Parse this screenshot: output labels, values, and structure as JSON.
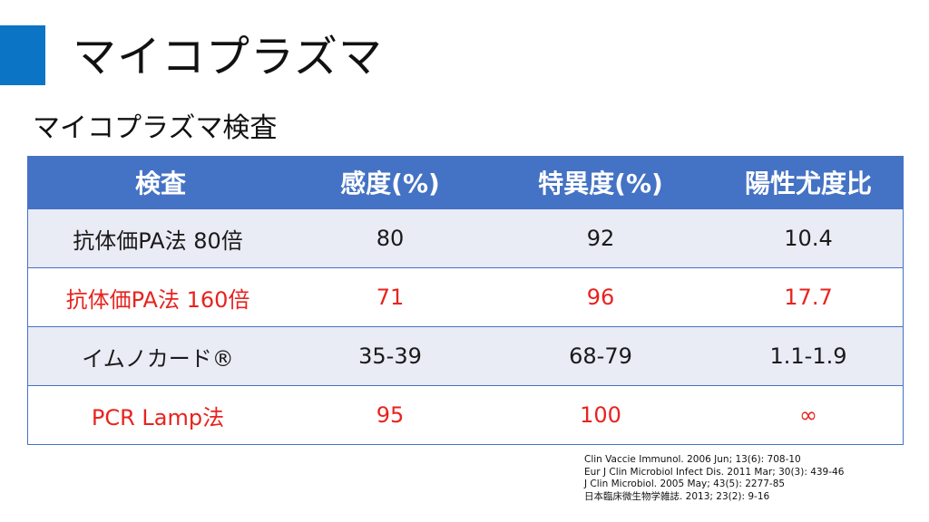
{
  "slide": {
    "title": "マイコプラズマ",
    "subtitle": "マイコプラズマ検査",
    "accent_color": "#0b74c5"
  },
  "table": {
    "header_color": "#4472c4",
    "headers": [
      "検査",
      "感度(%)",
      "特異度(%)",
      "陽性尤度比"
    ],
    "rows": [
      {
        "cells": [
          "抗体価PA法 80倍",
          "80",
          "92",
          "10.4"
        ],
        "text_color": "#1a1a1a"
      },
      {
        "cells": [
          "抗体価PA法 160倍",
          "71",
          "96",
          "17.7"
        ],
        "text_color": "#e8231e"
      },
      {
        "cells": [
          "イムノカード®",
          "35-39",
          "68-79",
          "1.1-1.9"
        ],
        "text_color": "#1a1a1a"
      },
      {
        "cells": [
          "PCR Lamp法",
          "95",
          "100",
          "∞"
        ],
        "text_color": "#e8231e"
      }
    ]
  },
  "references": [
    "Clin Vaccie Immunol. 2006 Jun; 13(6): 708-10",
    "Eur J Clin Microbiol Infect Dis. 2011 Mar; 30(3): 439-46",
    "J Clin Microbiol. 2005 May; 43(5): 2277-85",
    "日本臨床微生物学雑誌. 2013; 23(2): 9-16"
  ]
}
